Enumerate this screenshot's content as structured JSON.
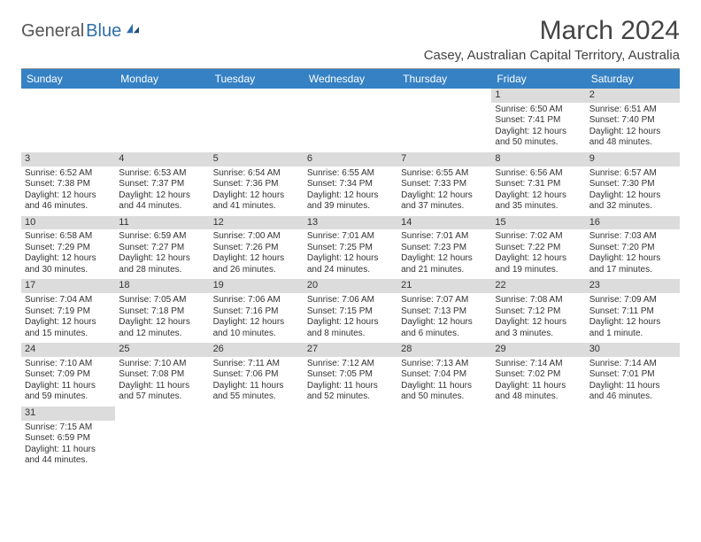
{
  "logo": {
    "part1": "General",
    "part2": "Blue"
  },
  "title": "March 2024",
  "location": "Casey, Australian Capital Territory, Australia",
  "colors": {
    "header_bg": "#3581c4",
    "header_text": "#ffffff",
    "daynum_bg": "#dcdcdc",
    "body_text": "#333333",
    "logo_blue": "#2f6fa8",
    "page_bg": "#ffffff"
  },
  "typography": {
    "title_fontsize": 30,
    "location_fontsize": 15,
    "dayheader_fontsize": 12,
    "cell_fontsize": 10
  },
  "day_headers": [
    "Sunday",
    "Monday",
    "Tuesday",
    "Wednesday",
    "Thursday",
    "Friday",
    "Saturday"
  ],
  "weeks": [
    [
      {
        "n": "",
        "lines": []
      },
      {
        "n": "",
        "lines": []
      },
      {
        "n": "",
        "lines": []
      },
      {
        "n": "",
        "lines": []
      },
      {
        "n": "",
        "lines": []
      },
      {
        "n": "1",
        "lines": [
          "Sunrise: 6:50 AM",
          "Sunset: 7:41 PM",
          "Daylight: 12 hours and 50 minutes."
        ]
      },
      {
        "n": "2",
        "lines": [
          "Sunrise: 6:51 AM",
          "Sunset: 7:40 PM",
          "Daylight: 12 hours and 48 minutes."
        ]
      }
    ],
    [
      {
        "n": "3",
        "lines": [
          "Sunrise: 6:52 AM",
          "Sunset: 7:38 PM",
          "Daylight: 12 hours and 46 minutes."
        ]
      },
      {
        "n": "4",
        "lines": [
          "Sunrise: 6:53 AM",
          "Sunset: 7:37 PM",
          "Daylight: 12 hours and 44 minutes."
        ]
      },
      {
        "n": "5",
        "lines": [
          "Sunrise: 6:54 AM",
          "Sunset: 7:36 PM",
          "Daylight: 12 hours and 41 minutes."
        ]
      },
      {
        "n": "6",
        "lines": [
          "Sunrise: 6:55 AM",
          "Sunset: 7:34 PM",
          "Daylight: 12 hours and 39 minutes."
        ]
      },
      {
        "n": "7",
        "lines": [
          "Sunrise: 6:55 AM",
          "Sunset: 7:33 PM",
          "Daylight: 12 hours and 37 minutes."
        ]
      },
      {
        "n": "8",
        "lines": [
          "Sunrise: 6:56 AM",
          "Sunset: 7:31 PM",
          "Daylight: 12 hours and 35 minutes."
        ]
      },
      {
        "n": "9",
        "lines": [
          "Sunrise: 6:57 AM",
          "Sunset: 7:30 PM",
          "Daylight: 12 hours and 32 minutes."
        ]
      }
    ],
    [
      {
        "n": "10",
        "lines": [
          "Sunrise: 6:58 AM",
          "Sunset: 7:29 PM",
          "Daylight: 12 hours and 30 minutes."
        ]
      },
      {
        "n": "11",
        "lines": [
          "Sunrise: 6:59 AM",
          "Sunset: 7:27 PM",
          "Daylight: 12 hours and 28 minutes."
        ]
      },
      {
        "n": "12",
        "lines": [
          "Sunrise: 7:00 AM",
          "Sunset: 7:26 PM",
          "Daylight: 12 hours and 26 minutes."
        ]
      },
      {
        "n": "13",
        "lines": [
          "Sunrise: 7:01 AM",
          "Sunset: 7:25 PM",
          "Daylight: 12 hours and 24 minutes."
        ]
      },
      {
        "n": "14",
        "lines": [
          "Sunrise: 7:01 AM",
          "Sunset: 7:23 PM",
          "Daylight: 12 hours and 21 minutes."
        ]
      },
      {
        "n": "15",
        "lines": [
          "Sunrise: 7:02 AM",
          "Sunset: 7:22 PM",
          "Daylight: 12 hours and 19 minutes."
        ]
      },
      {
        "n": "16",
        "lines": [
          "Sunrise: 7:03 AM",
          "Sunset: 7:20 PM",
          "Daylight: 12 hours and 17 minutes."
        ]
      }
    ],
    [
      {
        "n": "17",
        "lines": [
          "Sunrise: 7:04 AM",
          "Sunset: 7:19 PM",
          "Daylight: 12 hours and 15 minutes."
        ]
      },
      {
        "n": "18",
        "lines": [
          "Sunrise: 7:05 AM",
          "Sunset: 7:18 PM",
          "Daylight: 12 hours and 12 minutes."
        ]
      },
      {
        "n": "19",
        "lines": [
          "Sunrise: 7:06 AM",
          "Sunset: 7:16 PM",
          "Daylight: 12 hours and 10 minutes."
        ]
      },
      {
        "n": "20",
        "lines": [
          "Sunrise: 7:06 AM",
          "Sunset: 7:15 PM",
          "Daylight: 12 hours and 8 minutes."
        ]
      },
      {
        "n": "21",
        "lines": [
          "Sunrise: 7:07 AM",
          "Sunset: 7:13 PM",
          "Daylight: 12 hours and 6 minutes."
        ]
      },
      {
        "n": "22",
        "lines": [
          "Sunrise: 7:08 AM",
          "Sunset: 7:12 PM",
          "Daylight: 12 hours and 3 minutes."
        ]
      },
      {
        "n": "23",
        "lines": [
          "Sunrise: 7:09 AM",
          "Sunset: 7:11 PM",
          "Daylight: 12 hours and 1 minute."
        ]
      }
    ],
    [
      {
        "n": "24",
        "lines": [
          "Sunrise: 7:10 AM",
          "Sunset: 7:09 PM",
          "Daylight: 11 hours and 59 minutes."
        ]
      },
      {
        "n": "25",
        "lines": [
          "Sunrise: 7:10 AM",
          "Sunset: 7:08 PM",
          "Daylight: 11 hours and 57 minutes."
        ]
      },
      {
        "n": "26",
        "lines": [
          "Sunrise: 7:11 AM",
          "Sunset: 7:06 PM",
          "Daylight: 11 hours and 55 minutes."
        ]
      },
      {
        "n": "27",
        "lines": [
          "Sunrise: 7:12 AM",
          "Sunset: 7:05 PM",
          "Daylight: 11 hours and 52 minutes."
        ]
      },
      {
        "n": "28",
        "lines": [
          "Sunrise: 7:13 AM",
          "Sunset: 7:04 PM",
          "Daylight: 11 hours and 50 minutes."
        ]
      },
      {
        "n": "29",
        "lines": [
          "Sunrise: 7:14 AM",
          "Sunset: 7:02 PM",
          "Daylight: 11 hours and 48 minutes."
        ]
      },
      {
        "n": "30",
        "lines": [
          "Sunrise: 7:14 AM",
          "Sunset: 7:01 PM",
          "Daylight: 11 hours and 46 minutes."
        ]
      }
    ],
    [
      {
        "n": "31",
        "lines": [
          "Sunrise: 7:15 AM",
          "Sunset: 6:59 PM",
          "Daylight: 11 hours and 44 minutes."
        ]
      },
      {
        "n": "",
        "lines": []
      },
      {
        "n": "",
        "lines": []
      },
      {
        "n": "",
        "lines": []
      },
      {
        "n": "",
        "lines": []
      },
      {
        "n": "",
        "lines": []
      },
      {
        "n": "",
        "lines": []
      }
    ]
  ]
}
